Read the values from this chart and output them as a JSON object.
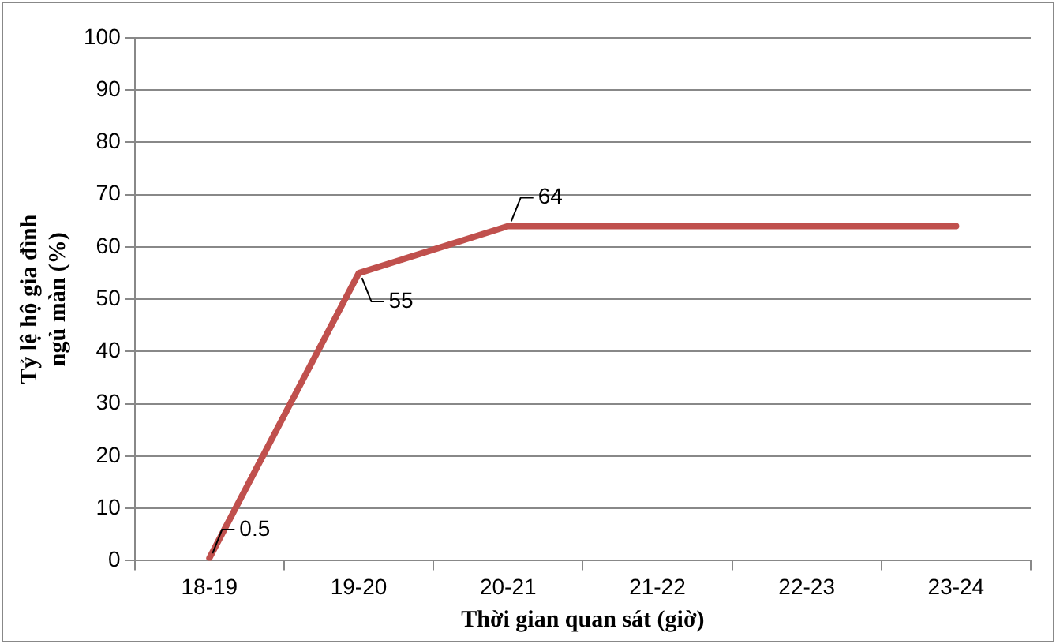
{
  "chart_data": {
    "type": "line",
    "xlabel": "Thời gian quan sát (giờ)",
    "ylabel": "Tỷ lệ hộ gia đình ngủ màn (%)",
    "categories": [
      "18-19",
      "19-20",
      "20-21",
      "21-22",
      "22-23",
      "23-24"
    ],
    "series": [
      {
        "color": "#c0504d",
        "values": [
          0.5,
          55,
          64,
          64,
          64,
          64
        ],
        "value_labels": [
          "0.5",
          "55",
          "64",
          null,
          null,
          null
        ]
      }
    ],
    "ylim": [
      0,
      100
    ],
    "yticks": [
      0,
      10,
      20,
      30,
      40,
      50,
      60,
      70,
      80,
      90,
      100
    ],
    "grid": "y",
    "legend": false,
    "marker": "none",
    "line_style": "solid"
  }
}
